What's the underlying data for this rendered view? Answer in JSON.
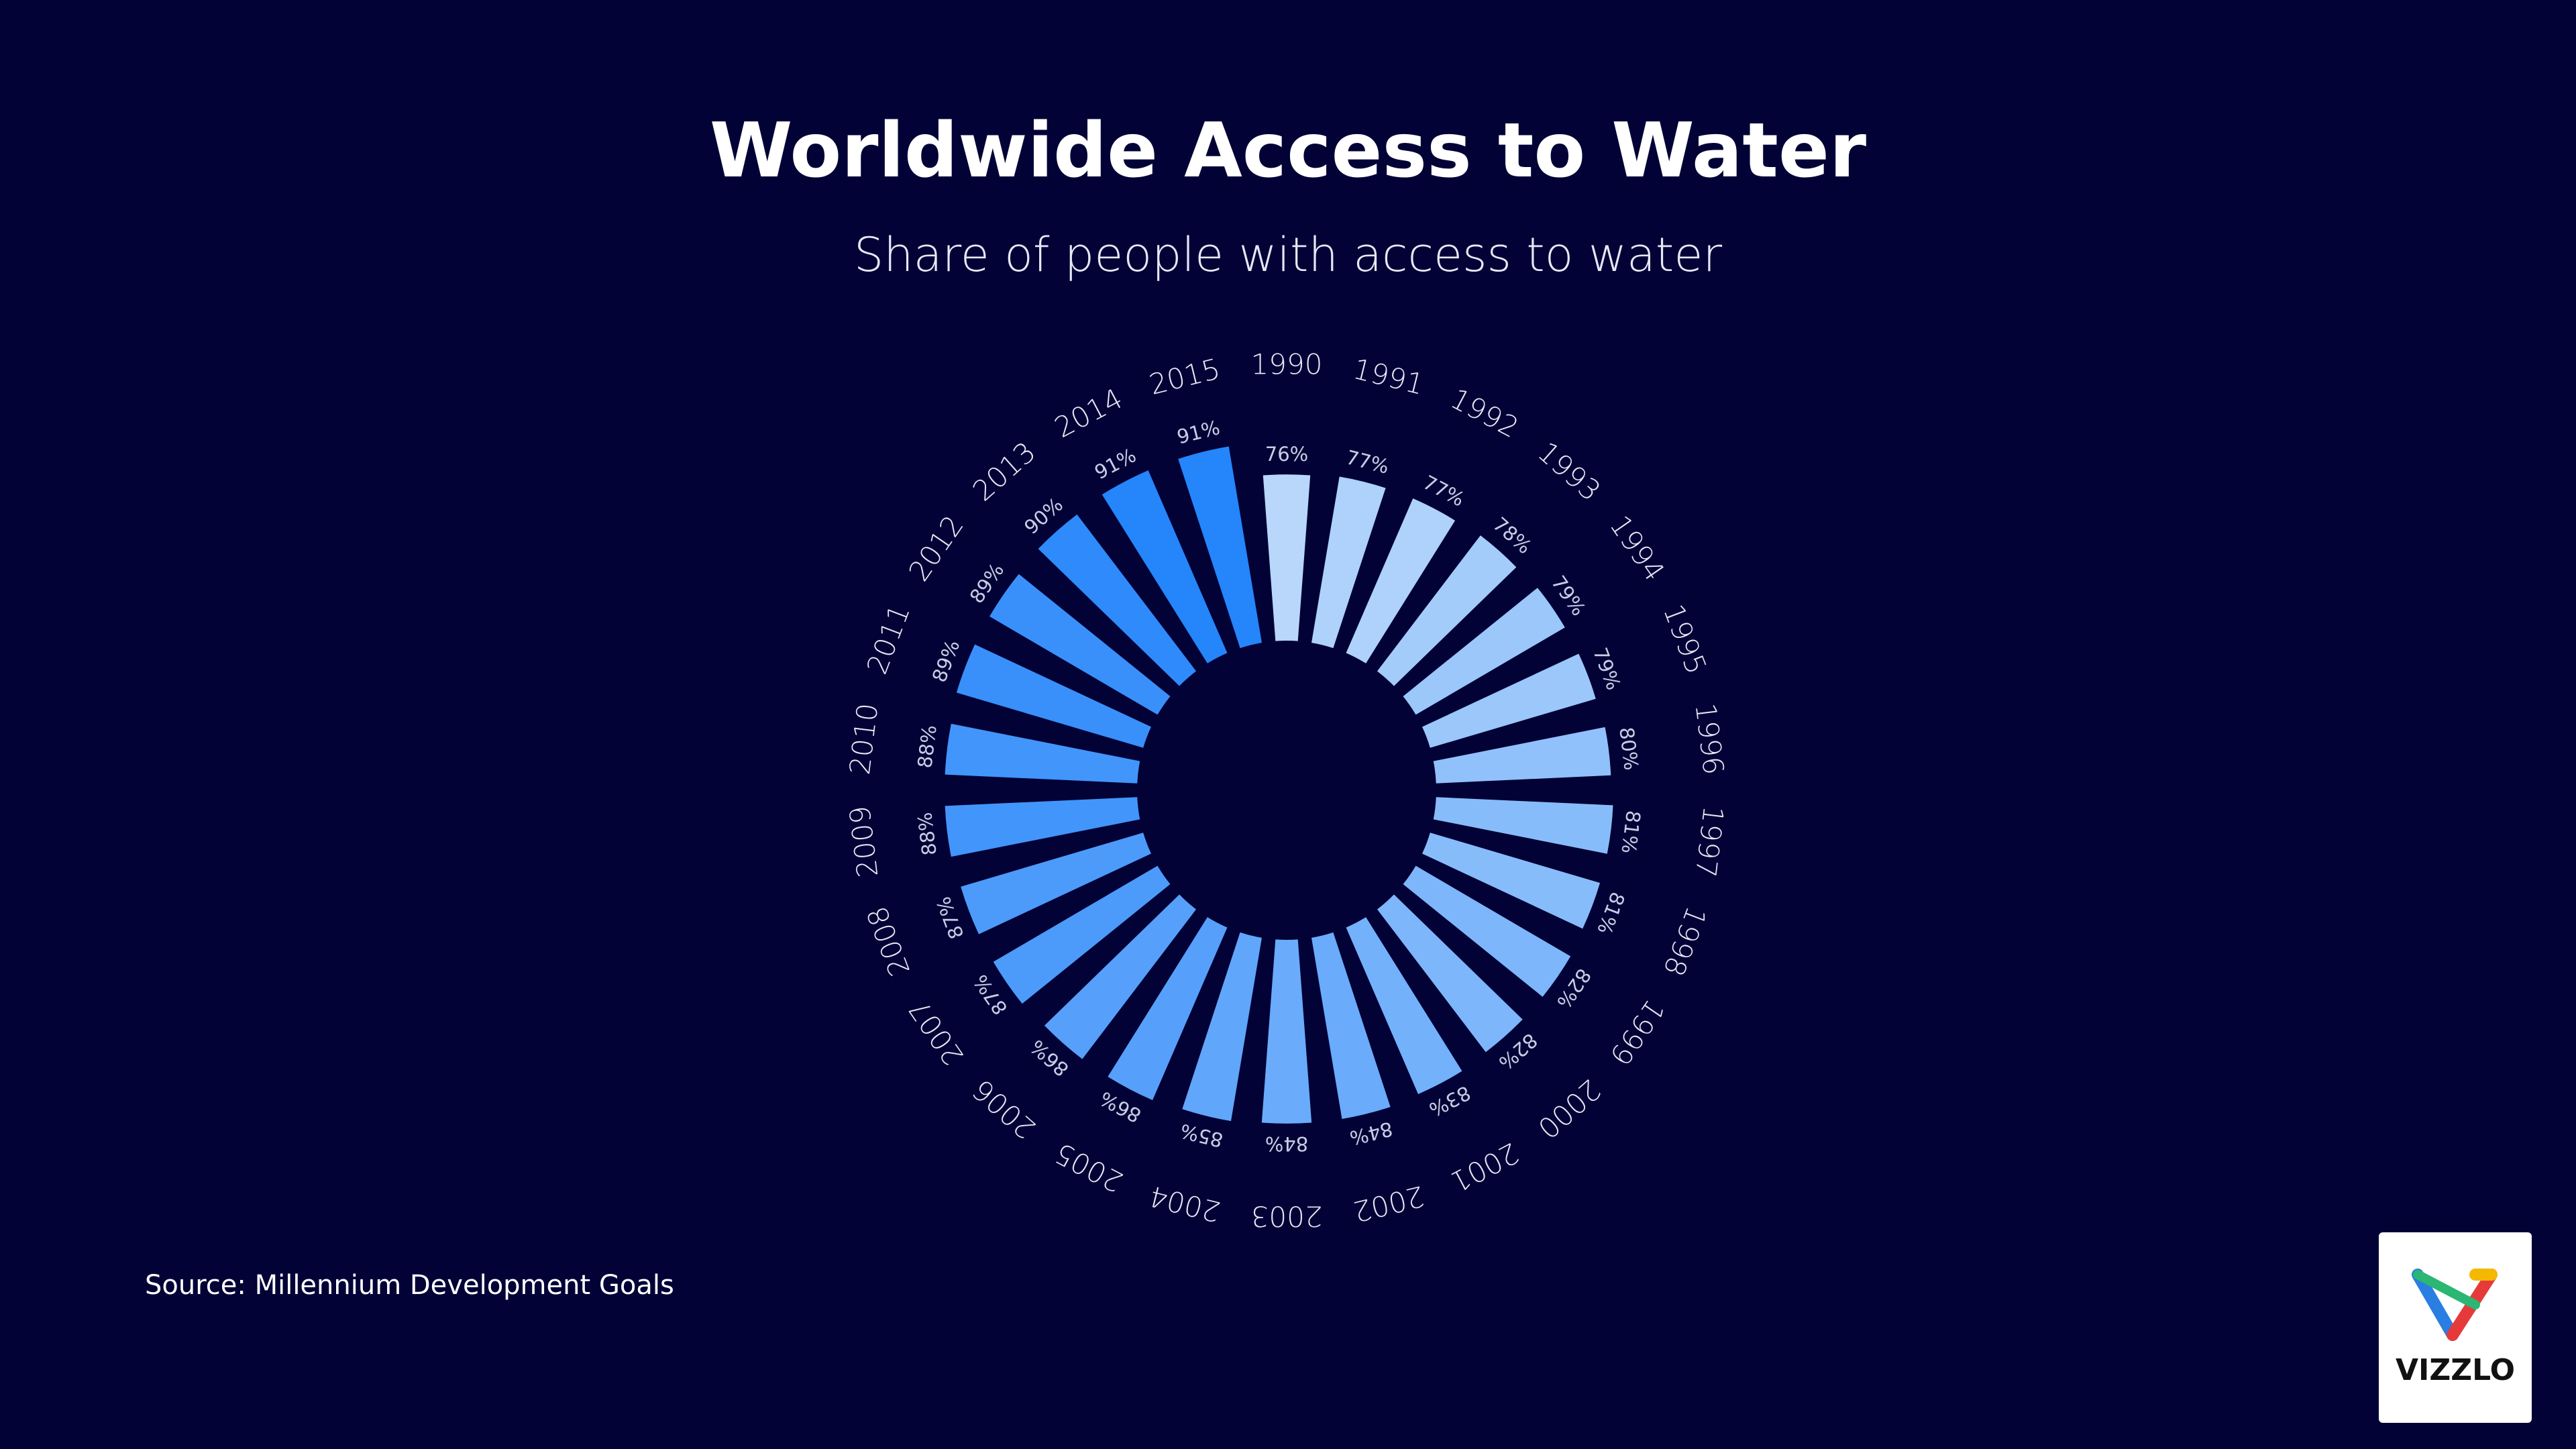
{
  "chart_data": {
    "type": "radial-bar",
    "title": "Worldwide Access to Water",
    "subtitle": "Share of people with access to water",
    "source": "Source: Millennium Development Goals",
    "categories": [
      "1990",
      "1991",
      "1992",
      "1993",
      "1994",
      "1995",
      "1996",
      "1997",
      "1998",
      "1999",
      "2000",
      "2001",
      "2002",
      "2003",
      "2004",
      "2005",
      "2006",
      "2007",
      "2008",
      "2009",
      "2010",
      "2011",
      "2012",
      "2013",
      "2014",
      "2015"
    ],
    "values": [
      76,
      77,
      77,
      78,
      79,
      79,
      80,
      81,
      81,
      82,
      82,
      83,
      84,
      84,
      85,
      86,
      86,
      87,
      87,
      88,
      88,
      89,
      89,
      90,
      91,
      91
    ],
    "value_labels": [
      "76%",
      "77%",
      "77%",
      "78%",
      "79%",
      "79%",
      "80%",
      "81%",
      "81%",
      "82%",
      "82%",
      "83%",
      "84%",
      "84%",
      "85%",
      "86%",
      "86%",
      "87%",
      "87%",
      "88%",
      "88%",
      "89%",
      "89%",
      "90%",
      "91%",
      "91%"
    ],
    "color_scale": [
      "#b8d7fb",
      "#2585fb"
    ],
    "ylim": [
      0,
      100
    ]
  },
  "logo": {
    "text": "VIZZLO"
  }
}
